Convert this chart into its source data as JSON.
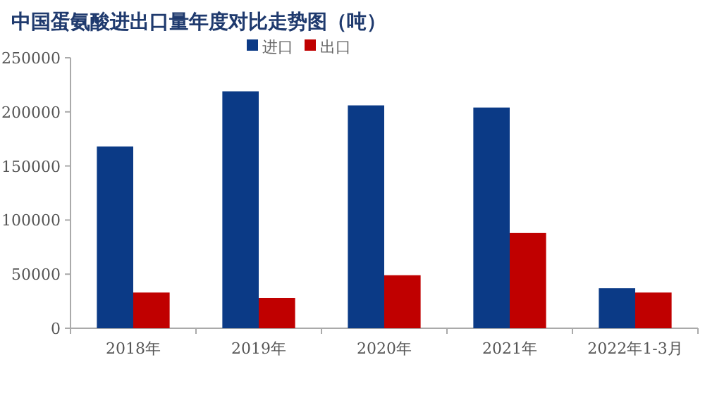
{
  "chart_data": {
    "type": "bar",
    "title": "中国蛋氨酸进出口量年度对比走势图（吨）",
    "categories": [
      "2018年",
      "2019年",
      "2020年",
      "2021年",
      "2022年1-3月"
    ],
    "series": [
      {
        "name": "进口",
        "color": "#0b3a86",
        "values": [
          168000,
          219000,
          206000,
          204000,
          37000
        ]
      },
      {
        "name": "出口",
        "color": "#c00000",
        "values": [
          33000,
          28000,
          49000,
          88000,
          33000
        ]
      }
    ],
    "ylim": [
      0,
      250000
    ],
    "yticks": [
      0,
      50000,
      100000,
      150000,
      200000,
      250000
    ],
    "grid": false,
    "legend": "top"
  }
}
